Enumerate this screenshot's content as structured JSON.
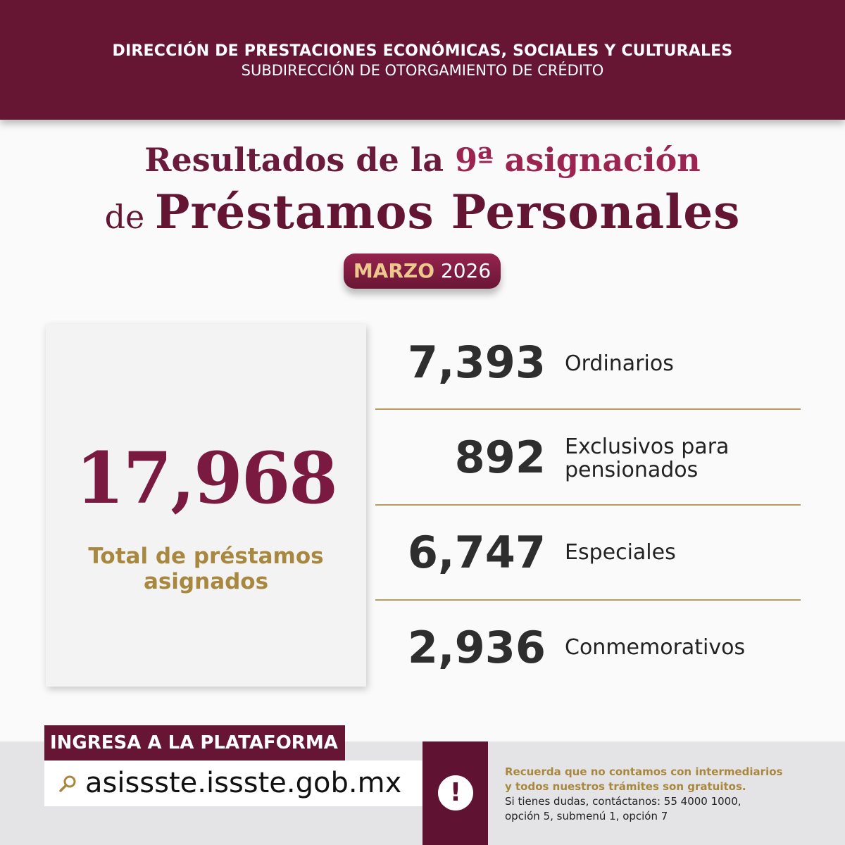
{
  "header": {
    "line1": "DIRECCIÓN DE PRESTACIONES ECONÓMICAS, SOCIALES Y CULTURALES",
    "line2": "SUBDIRECCIÓN DE OTORGAMIENTO DE CRÉDITO"
  },
  "title": {
    "line1_a": "Resultados de la ",
    "line1_b": "9ª asignación",
    "line2_a": "de ",
    "line2_b": "Préstamos Personales"
  },
  "period": {
    "month": "MARZO",
    "year": "2026"
  },
  "total": {
    "value": "17,968",
    "label": "Total de préstamos asignados"
  },
  "breakdown": [
    {
      "value": "7,393",
      "label": "Ordinarios"
    },
    {
      "value": "892",
      "label": "Exclusivos para pensionados"
    },
    {
      "value": "6,747",
      "label": "Especiales"
    },
    {
      "value": "2,936",
      "label": "Conmemorativos"
    }
  ],
  "footer": {
    "cta": "INGRESA A LA PLATAFORMA",
    "url": "asissste.issste.gob.mx",
    "notice_bold1": "Recuerda que no contamos con intermediarios",
    "notice_bold2": "y todos nuestros trámites son gratuitos.",
    "notice1": "Si tienes dudas, contáctanos: 55 4000 1000,",
    "notice2": "opción 5, submenú 1, opción 7"
  },
  "colors": {
    "maroon": "#661533",
    "gold": "#a8873f"
  }
}
